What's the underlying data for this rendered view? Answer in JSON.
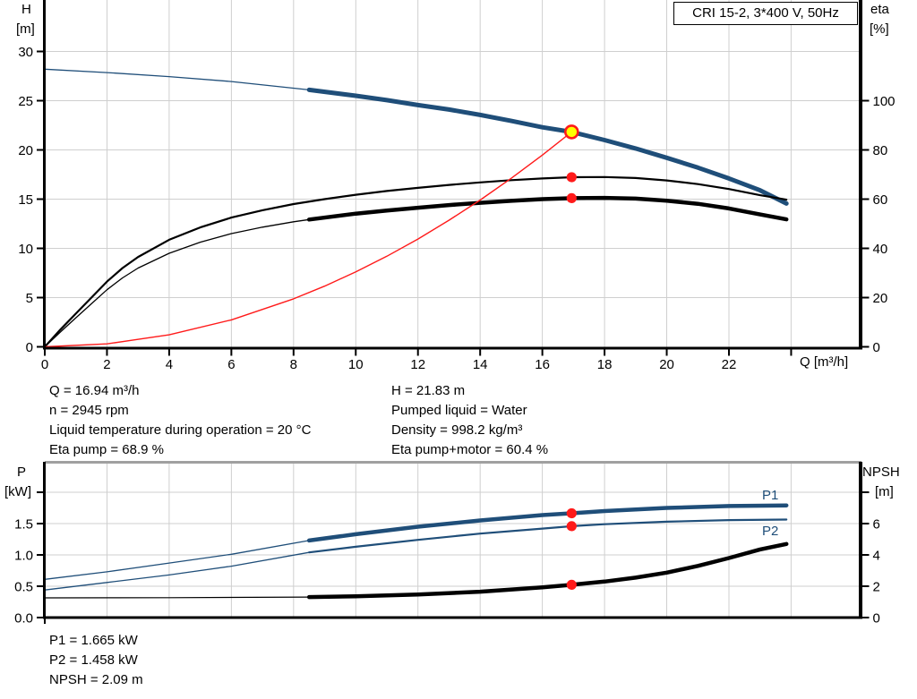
{
  "title_box": "CRI 15-2, 3*400 V, 50Hz",
  "colors": {
    "blue": "#1f4e79",
    "red": "#ff1a1a",
    "yellow": "#ffff00",
    "black": "#000000",
    "grid": "#cfcfcf",
    "chart_top_border": "#a0a0a0"
  },
  "mid_text": {
    "left": [
      "Q = 16.94 m³/h",
      "n = 2945 rpm",
      "Liquid temperature during operation = 20 °C",
      "Eta pump = 68.9 %"
    ],
    "right": [
      "H = 21.83 m",
      "Pumped liquid = Water",
      "Density = 998.2 kg/m³",
      "Eta pump+motor = 60.4 %"
    ]
  },
  "bottom_text": [
    "P1 = 1.665 kW",
    "P2 = 1.458 kW",
    "NPSH = 2.09 m"
  ],
  "curve_labels": {
    "p1": "P1",
    "p2": "P2"
  },
  "chart_data": [
    {
      "type": "line",
      "title": "CRI 15-2, 3*400 V, 50Hz",
      "xlabel": "Q [m³/h]",
      "xlim": [
        0,
        26.2
      ],
      "grid": true,
      "x_axis": {
        "label": "Q [m³/h]",
        "ticks": [
          0,
          2,
          4,
          6,
          8,
          10,
          12,
          14,
          16,
          18,
          20,
          22,
          24
        ],
        "tick_labels": [
          "0",
          "2",
          "4",
          "6",
          "8",
          "10",
          "12",
          "14",
          "16",
          "18",
          "20",
          "22",
          ""
        ]
      },
      "axes": {
        "left": {
          "title": "H",
          "unit": "[m]",
          "lim": [
            0,
            35.2
          ],
          "ticks": [
            30,
            25,
            20,
            15,
            10,
            5,
            0
          ],
          "tick_labels": [
            "30",
            "25",
            "20",
            "15",
            "10",
            "5",
            "0"
          ]
        },
        "right": {
          "title": "eta",
          "unit": "[%]",
          "lim": [
            0,
            141
          ],
          "ticks": [
            100,
            80,
            60,
            40,
            20,
            0
          ],
          "tick_labels": [
            "100",
            "80",
            "60",
            "40",
            "20",
            "0"
          ]
        }
      },
      "series": [
        {
          "name": "pump-curve-extension",
          "axis": "left",
          "color": "blue",
          "width": 1.3,
          "points": [
            [
              0,
              28.2
            ],
            [
              2,
              27.85
            ],
            [
              4,
              27.45
            ],
            [
              6,
              26.95
            ],
            [
              8.5,
              26.1
            ]
          ]
        },
        {
          "name": "pump-curve",
          "axis": "left",
          "color": "blue",
          "width": 5,
          "points": [
            [
              8.5,
              26.1
            ],
            [
              10,
              25.5
            ],
            [
              11,
              25.05
            ],
            [
              12,
              24.55
            ],
            [
              13,
              24.1
            ],
            [
              14,
              23.55
            ],
            [
              15,
              22.95
            ],
            [
              16,
              22.3
            ],
            [
              16.94,
              21.83
            ],
            [
              18,
              21.0
            ],
            [
              19,
              20.15
            ],
            [
              20,
              19.2
            ],
            [
              21,
              18.2
            ],
            [
              22,
              17.1
            ],
            [
              23,
              15.9
            ],
            [
              23.85,
              14.55
            ]
          ]
        },
        {
          "name": "eta-pump-curve",
          "axis": "right",
          "color": "black",
          "width": 2.2,
          "points": [
            [
              0,
              0
            ],
            [
              0.5,
              7
            ],
            [
              1,
              13.5
            ],
            [
              1.5,
              20
            ],
            [
              2,
              26.5
            ],
            [
              2.5,
              32
            ],
            [
              3,
              36.5
            ],
            [
              4,
              43.5
            ],
            [
              5,
              48.5
            ],
            [
              6,
              52.5
            ],
            [
              7,
              55.5
            ],
            [
              8,
              58
            ],
            [
              9,
              60
            ],
            [
              10,
              61.8
            ],
            [
              11,
              63.3
            ],
            [
              12,
              64.6
            ],
            [
              13,
              65.8
            ],
            [
              14,
              66.8
            ],
            [
              15,
              67.7
            ],
            [
              16,
              68.4
            ],
            [
              16.94,
              68.9
            ],
            [
              18,
              69.0
            ],
            [
              19,
              68.6
            ],
            [
              20,
              67.6
            ],
            [
              21,
              66.1
            ],
            [
              22,
              64.1
            ],
            [
              23,
              61.6
            ],
            [
              23.85,
              59.8
            ]
          ]
        },
        {
          "name": "eta-pump-motor-extension",
          "axis": "right",
          "color": "black",
          "width": 1.3,
          "points": [
            [
              0,
              0
            ],
            [
              0.5,
              6
            ],
            [
              1,
              11.8
            ],
            [
              1.5,
              17.5
            ],
            [
              2,
              23.2
            ],
            [
              2.5,
              28
            ],
            [
              3,
              32
            ],
            [
              4,
              38
            ],
            [
              5,
              42.5
            ],
            [
              6,
              46
            ],
            [
              7,
              48.6
            ],
            [
              8,
              50.8
            ],
            [
              8.5,
              51.7
            ]
          ]
        },
        {
          "name": "eta-pump-motor-curve",
          "axis": "right",
          "color": "black",
          "width": 4.5,
          "points": [
            [
              8.5,
              51.7
            ],
            [
              10,
              54.1
            ],
            [
              11,
              55.4
            ],
            [
              12,
              56.5
            ],
            [
              13,
              57.6
            ],
            [
              14,
              58.5
            ],
            [
              15,
              59.3
            ],
            [
              16,
              60.0
            ],
            [
              16.94,
              60.4
            ],
            [
              18,
              60.5
            ],
            [
              19,
              60.2
            ],
            [
              20,
              59.4
            ],
            [
              21,
              58.1
            ],
            [
              22,
              56.2
            ],
            [
              23,
              53.8
            ],
            [
              23.85,
              51.8
            ]
          ]
        },
        {
          "name": "system-curve",
          "axis": "left",
          "color": "red",
          "width": 1.4,
          "points": [
            [
              0,
              0
            ],
            [
              2,
              0.3
            ],
            [
              4,
              1.22
            ],
            [
              6,
              2.74
            ],
            [
              8,
              4.87
            ],
            [
              9,
              6.16
            ],
            [
              10,
              7.61
            ],
            [
              11,
              9.2
            ],
            [
              12,
              10.95
            ],
            [
              13,
              12.86
            ],
            [
              14,
              14.91
            ],
            [
              15,
              17.12
            ],
            [
              16,
              19.47
            ],
            [
              16.94,
              21.83
            ]
          ]
        }
      ],
      "markers": [
        {
          "name": "duty-point",
          "x": 16.94,
          "y": 21.83,
          "axis": "left",
          "style": "duty"
        },
        {
          "name": "eta-pump-point",
          "x": 16.94,
          "y": 68.9,
          "axis": "right",
          "style": "dot"
        },
        {
          "name": "eta-pump-motor-point",
          "x": 16.94,
          "y": 60.4,
          "axis": "right",
          "style": "dot"
        }
      ]
    },
    {
      "type": "line",
      "xlim": [
        0,
        26.2
      ],
      "grid": true,
      "x_axis": {
        "ticks": [
          0,
          2,
          4,
          6,
          8,
          10,
          12,
          14,
          16,
          18,
          20,
          22,
          24
        ],
        "tick_labels": [
          "",
          "",
          "",
          "",
          "",
          "",
          "",
          "",
          "",
          "",
          "",
          "",
          ""
        ]
      },
      "axes": {
        "left": {
          "title": "P",
          "unit": "[kW]",
          "lim": [
            0,
            2.47
          ],
          "ticks": [
            2.0,
            1.5,
            1.0,
            0.5,
            0.0
          ],
          "tick_labels": [
            "",
            "1.5",
            "1.0",
            "0.5",
            "0.0"
          ]
        },
        "right": {
          "title": "NPSH",
          "unit": "[m]",
          "lim": [
            0,
            9.9
          ],
          "ticks": [
            8,
            6,
            4,
            2,
            0
          ],
          "tick_labels": [
            "",
            "6",
            "4",
            "2",
            "0"
          ]
        }
      },
      "series": [
        {
          "name": "p1-curve-extension",
          "axis": "left",
          "color": "blue",
          "width": 1.3,
          "points": [
            [
              0,
              0.61
            ],
            [
              2,
              0.73
            ],
            [
              4,
              0.87
            ],
            [
              6,
              1.01
            ],
            [
              8.5,
              1.23
            ]
          ]
        },
        {
          "name": "p1-curve",
          "axis": "left",
          "color": "blue",
          "width": 4.5,
          "points": [
            [
              8.5,
              1.23
            ],
            [
              10,
              1.33
            ],
            [
              12,
              1.45
            ],
            [
              14,
              1.55
            ],
            [
              16,
              1.635
            ],
            [
              16.94,
              1.665
            ],
            [
              18,
              1.7
            ],
            [
              20,
              1.75
            ],
            [
              22,
              1.78
            ],
            [
              23.85,
              1.79
            ]
          ]
        },
        {
          "name": "p2-curve-extension",
          "axis": "left",
          "color": "blue",
          "width": 1.3,
          "points": [
            [
              0,
              0.44
            ],
            [
              2,
              0.56
            ],
            [
              4,
              0.68
            ],
            [
              6,
              0.82
            ],
            [
              8.5,
              1.04
            ]
          ]
        },
        {
          "name": "p2-curve",
          "axis": "left",
          "color": "blue",
          "width": 2.2,
          "points": [
            [
              8.5,
              1.04
            ],
            [
              10,
              1.13
            ],
            [
              12,
              1.24
            ],
            [
              14,
              1.34
            ],
            [
              16,
              1.42
            ],
            [
              16.94,
              1.458
            ],
            [
              18,
              1.49
            ],
            [
              20,
              1.53
            ],
            [
              22,
              1.555
            ],
            [
              23.85,
              1.565
            ]
          ]
        },
        {
          "name": "npsh-curve-extension",
          "axis": "right",
          "color": "black",
          "width": 1.2,
          "points": [
            [
              0,
              1.26
            ],
            [
              4,
              1.27
            ],
            [
              8.5,
              1.31
            ]
          ]
        },
        {
          "name": "npsh-curve",
          "axis": "right",
          "color": "black",
          "width": 4.5,
          "points": [
            [
              8.5,
              1.31
            ],
            [
              10,
              1.36
            ],
            [
              12,
              1.47
            ],
            [
              14,
              1.65
            ],
            [
              16,
              1.93
            ],
            [
              16.94,
              2.09
            ],
            [
              18,
              2.3
            ],
            [
              19,
              2.55
            ],
            [
              20,
              2.87
            ],
            [
              21,
              3.3
            ],
            [
              22,
              3.8
            ],
            [
              23,
              4.35
            ],
            [
              23.85,
              4.7
            ]
          ]
        }
      ],
      "markers": [
        {
          "name": "p1-point",
          "x": 16.94,
          "y": 1.665,
          "axis": "left",
          "style": "dot"
        },
        {
          "name": "p2-point",
          "x": 16.94,
          "y": 1.458,
          "axis": "left",
          "style": "dot"
        },
        {
          "name": "npsh-point",
          "x": 16.94,
          "y": 2.09,
          "axis": "right",
          "style": "dot"
        }
      ]
    }
  ]
}
